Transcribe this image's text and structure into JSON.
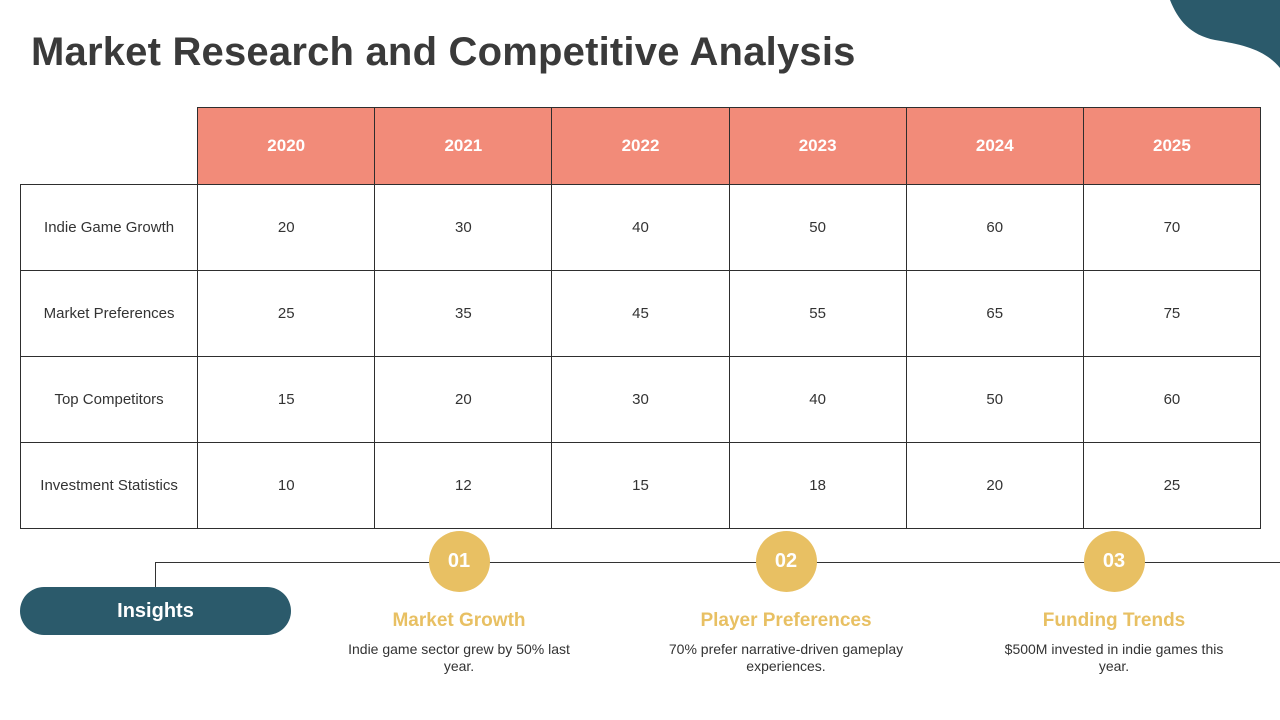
{
  "title": "Market Research and Competitive Analysis",
  "table": {
    "years": [
      "2020",
      "2021",
      "2022",
      "2023",
      "2024",
      "2025"
    ],
    "rows": [
      {
        "label": "Indie Game Growth",
        "values": [
          "20",
          "30",
          "40",
          "50",
          "60",
          "70"
        ]
      },
      {
        "label": "Market Preferences",
        "values": [
          "25",
          "35",
          "45",
          "55",
          "65",
          "75"
        ]
      },
      {
        "label": "Top Competitors",
        "values": [
          "15",
          "20",
          "30",
          "40",
          "50",
          "60"
        ]
      },
      {
        "label": "Investment Statistics",
        "values": [
          "10",
          "12",
          "15",
          "18",
          "20",
          "25"
        ]
      }
    ]
  },
  "insights": {
    "label": "Insights",
    "items": [
      {
        "num": "01",
        "title": "Market Growth",
        "desc": "Indie game sector grew by 50% last year."
      },
      {
        "num": "02",
        "title": "Player Preferences",
        "desc": "70% prefer narrative-driven gameplay experiences."
      },
      {
        "num": "03",
        "title": "Funding Trends",
        "desc": "$500M invested in indie games this year."
      }
    ]
  },
  "colors": {
    "header": "#f28b79",
    "accent_circle": "#e8c063",
    "pill": "#2b5a6b",
    "corner_shape": "#2b5a6b"
  }
}
